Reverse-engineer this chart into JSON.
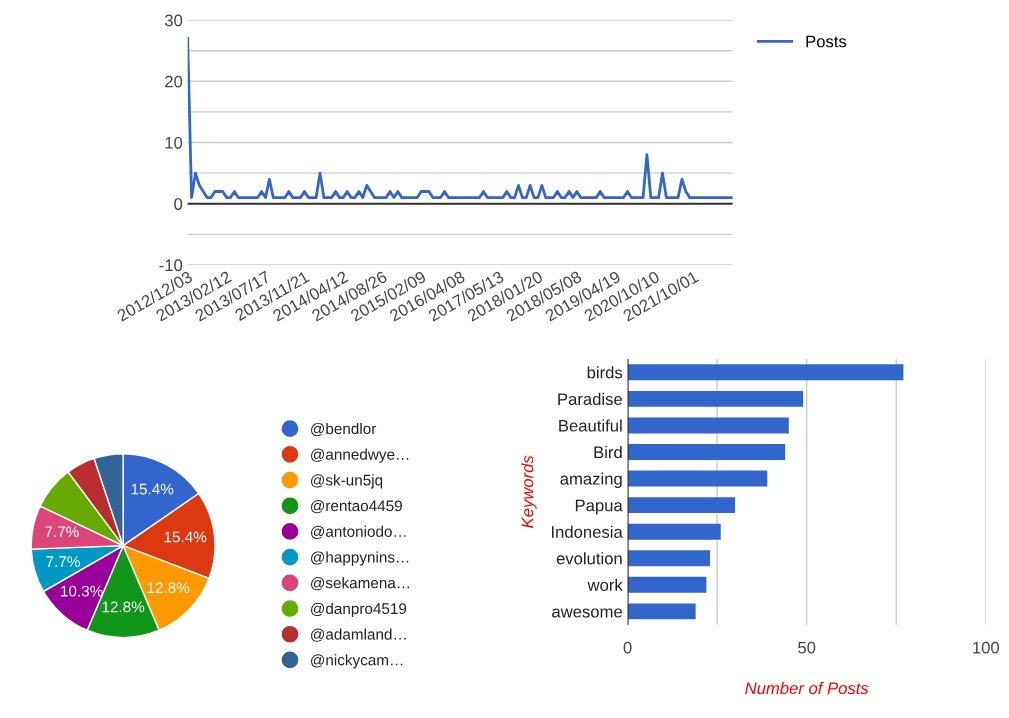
{
  "chart_data": [
    {
      "type": "line",
      "categories": [
        "2012/12/03",
        null,
        null,
        null,
        null,
        null,
        null,
        null,
        null,
        null,
        "2013/02/12",
        null,
        null,
        null,
        null,
        null,
        null,
        null,
        null,
        null,
        "2013/07/17",
        null,
        null,
        null,
        null,
        null,
        null,
        null,
        null,
        null,
        "2013/11/21",
        null,
        null,
        null,
        null,
        null,
        null,
        null,
        null,
        null,
        "2014/04/12",
        null,
        null,
        null,
        null,
        null,
        null,
        null,
        null,
        null,
        "2014/08/26",
        null,
        null,
        null,
        null,
        null,
        null,
        null,
        null,
        null,
        "2015/02/09",
        null,
        null,
        null,
        null,
        null,
        null,
        null,
        null,
        null,
        "2016/04/08",
        null,
        null,
        null,
        null,
        null,
        null,
        null,
        null,
        null,
        "2017/05/13",
        null,
        null,
        null,
        null,
        null,
        null,
        null,
        null,
        null,
        "2018/01/20",
        null,
        null,
        null,
        null,
        null,
        null,
        null,
        null,
        null,
        "2018/05/08",
        null,
        null,
        null,
        null,
        null,
        null,
        null,
        null,
        null,
        "2019/04/19",
        null,
        null,
        null,
        null,
        null,
        null,
        null,
        null,
        null,
        "2020/10/10",
        null,
        null,
        null,
        null,
        null,
        null,
        null,
        null,
        null,
        "2021/10/01",
        null,
        null,
        null,
        null,
        null,
        null,
        null,
        null,
        null,
        null
      ],
      "series": [
        {
          "name": "Posts",
          "color": "#3366cc",
          "values": [
            27,
            1,
            5,
            3,
            2,
            1,
            1,
            2,
            2,
            2,
            1,
            1,
            2,
            1,
            1,
            1,
            1,
            1,
            1,
            2,
            1,
            4,
            1,
            1,
            1,
            1,
            2,
            1,
            1,
            1,
            2,
            1,
            1,
            1,
            5,
            1,
            1,
            1,
            2,
            1,
            1,
            2,
            1,
            1,
            2,
            1,
            3,
            2,
            1,
            1,
            1,
            1,
            2,
            1,
            2,
            1,
            1,
            1,
            1,
            1,
            2,
            2,
            2,
            1,
            1,
            1,
            2,
            1,
            1,
            1,
            1,
            1,
            1,
            1,
            1,
            1,
            2,
            1,
            1,
            1,
            1,
            1,
            2,
            1,
            1,
            3,
            1,
            1,
            3,
            1,
            1,
            3,
            1,
            1,
            1,
            2,
            1,
            1,
            2,
            1,
            2,
            1,
            1,
            1,
            1,
            1,
            2,
            1,
            1,
            1,
            1,
            1,
            1,
            2,
            1,
            1,
            1,
            1,
            8,
            1,
            1,
            1,
            5,
            1,
            1,
            1,
            1,
            4,
            2,
            1,
            1,
            1,
            1,
            1,
            1,
            1,
            1,
            1,
            1,
            1,
            1
          ]
        }
      ],
      "ylim": [
        -10,
        30
      ],
      "yticks": [
        -10,
        {
          "value": -5,
          "label": null
        },
        0,
        {
          "value": 5,
          "label": null
        },
        10,
        {
          "value": 15,
          "label": null
        },
        20,
        {
          "value": 25,
          "label": null
        },
        30
      ],
      "ref_lines": [
        {
          "axis": "y",
          "value": 0,
          "color": "#333333"
        }
      ],
      "grid": "y",
      "legend": "top right",
      "marker": "none",
      "line_style": "solid"
    },
    {
      "type": "pie",
      "categories": [
        "@bendlor",
        "@annedwye…",
        "@sk-un5jq",
        "@rentao4459",
        "@antoniodo…",
        "@happynins…",
        "@sekamena…",
        "@danpro4519",
        "@adamland…",
        "@nickycam…"
      ],
      "values": [
        15.4,
        15.4,
        12.8,
        12.8,
        10.3,
        7.7,
        7.7,
        7.7,
        5.1,
        5.1
      ],
      "value_labels": [
        "15.4%",
        "15.4%",
        "12.8%",
        "12.8%",
        "10.3%",
        "7.7%",
        "7.7%",
        null,
        null,
        null
      ],
      "colors": [
        "#3366cc",
        "#dc3912",
        "#ff9900",
        "#109618",
        "#990099",
        "#0099c6",
        "#dd4477",
        "#66aa00",
        "#b82e2e",
        "#316395"
      ],
      "legend": "right"
    },
    {
      "type": "bar",
      "orientation": "horizontal",
      "categories": [
        "birds",
        "Paradise",
        "Beautiful",
        "Bird",
        "amazing",
        "Papua",
        "Indonesia",
        "evolution",
        "work",
        "awesome"
      ],
      "values": [
        77,
        49,
        45,
        44,
        39,
        30,
        26,
        23,
        22,
        19
      ],
      "color": "#3366cc",
      "xlim": [
        0,
        100
      ],
      "xticks": [
        0,
        {
          "value": 25,
          "label": null
        },
        50,
        {
          "value": 75,
          "label": null
        },
        100
      ],
      "xlabel": "Number of Posts",
      "ylabel": "Keywords",
      "grid": "x"
    }
  ]
}
